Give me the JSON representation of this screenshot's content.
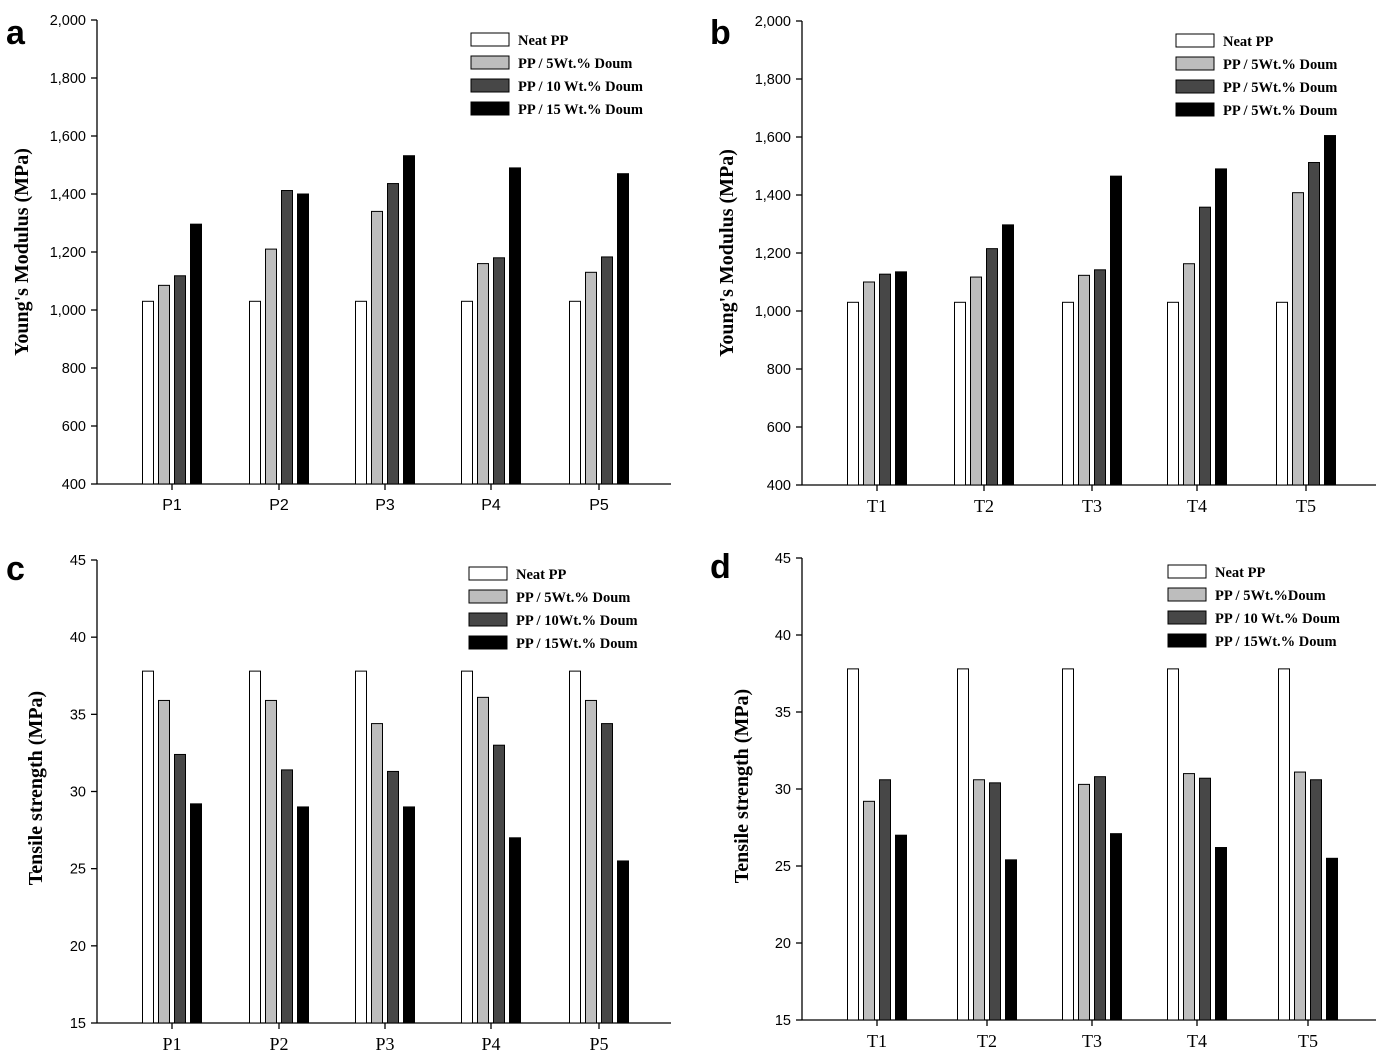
{
  "chart_data": [
    {
      "panel": "a",
      "type": "bar",
      "categories": [
        "P1",
        "P2",
        "P3",
        "P4",
        "P5"
      ],
      "ylabel": "Young's Modulus (MPa)",
      "ylim": [
        400,
        2000
      ],
      "yticks": [
        400,
        600,
        800,
        1000,
        1200,
        1400,
        1600,
        1800,
        2000
      ],
      "ytick_labels": [
        "400",
        "600",
        "800",
        "1,000",
        "1,200",
        "1,400",
        "1,600",
        "1,800",
        "2,000"
      ],
      "legend_position": "top-right",
      "series": [
        {
          "name": "Neat PP",
          "color": "#ffffff",
          "values": [
            1030,
            1030,
            1030,
            1030,
            1030
          ]
        },
        {
          "name": "PP / 5Wt.% Doum",
          "color": "#bdbdbd",
          "values": [
            1085,
            1210,
            1340,
            1160,
            1130
          ]
        },
        {
          "name": "PP / 10 Wt.% Doum",
          "color": "#474747",
          "values": [
            1118,
            1412,
            1436,
            1180,
            1183
          ]
        },
        {
          "name": "PP / 15 Wt.% Doum",
          "color": "#000000",
          "values": [
            1296,
            1400,
            1532,
            1490,
            1470
          ]
        }
      ]
    },
    {
      "panel": "b",
      "type": "bar",
      "categories": [
        "T1",
        "T2",
        "T3",
        "T4",
        "T5"
      ],
      "ylabel": "Young's Modulus (MPa)",
      "ylim": [
        400,
        2000
      ],
      "yticks": [
        400,
        600,
        800,
        1000,
        1200,
        1400,
        1600,
        1800,
        2000
      ],
      "ytick_labels": [
        "400",
        "600",
        "800",
        "1,000",
        "1,200",
        "1,400",
        "1,600",
        "1,800",
        "2,000"
      ],
      "legend_position": "top-right",
      "series": [
        {
          "name": "Neat PP",
          "color": "#ffffff",
          "values": [
            1030,
            1030,
            1030,
            1030,
            1030
          ]
        },
        {
          "name": "PP / 5Wt.% Doum",
          "color": "#bdbdbd",
          "values": [
            1100,
            1117,
            1123,
            1163,
            1408
          ]
        },
        {
          "name": "PP / 5Wt.% Doum",
          "color": "#474747",
          "values": [
            1127,
            1215,
            1142,
            1358,
            1512
          ]
        },
        {
          "name": "PP / 5Wt.% Doum",
          "color": "#000000",
          "values": [
            1135,
            1297,
            1465,
            1490,
            1605
          ]
        }
      ]
    },
    {
      "panel": "c",
      "type": "bar",
      "categories": [
        "P1",
        "P2",
        "P3",
        "P4",
        "P5"
      ],
      "ylabel": "Tensile strength (MPa)",
      "ylim": [
        15,
        45
      ],
      "yticks": [
        15,
        20,
        25,
        30,
        35,
        40,
        45
      ],
      "ytick_labels": [
        "15",
        "20",
        "25",
        "30",
        "35",
        "40",
        "45"
      ],
      "legend_position": "top-right",
      "series": [
        {
          "name": "Neat PP",
          "color": "#ffffff",
          "values": [
            37.8,
            37.8,
            37.8,
            37.8,
            37.8
          ]
        },
        {
          "name": "PP / 5Wt.% Doum",
          "color": "#bdbdbd",
          "values": [
            35.9,
            35.9,
            34.4,
            36.1,
            35.9
          ]
        },
        {
          "name": "PP / 10Wt.% Doum",
          "color": "#474747",
          "values": [
            32.4,
            31.4,
            31.3,
            33.0,
            34.4
          ]
        },
        {
          "name": "PP / 15Wt.% Doum",
          "color": "#000000",
          "values": [
            29.2,
            29.0,
            29.0,
            27.0,
            25.5
          ]
        }
      ]
    },
    {
      "panel": "d",
      "type": "bar",
      "categories": [
        "T1",
        "T2",
        "T3",
        "T4",
        "T5"
      ],
      "ylabel": "Tensile strength (MPa)",
      "ylim": [
        15,
        45
      ],
      "yticks": [
        15,
        20,
        25,
        30,
        35,
        40,
        45
      ],
      "ytick_labels": [
        "15",
        "20",
        "25",
        "30",
        "35",
        "40",
        "45"
      ],
      "legend_position": "top-right",
      "series": [
        {
          "name": "Neat PP",
          "color": "#ffffff",
          "values": [
            37.8,
            37.8,
            37.8,
            37.8,
            37.8
          ]
        },
        {
          "name": "PP / 5Wt.%Doum",
          "color": "#bdbdbd",
          "values": [
            29.2,
            30.6,
            30.3,
            31.0,
            31.1
          ]
        },
        {
          "name": "PP / 10 Wt.% Doum",
          "color": "#474747",
          "values": [
            30.6,
            30.4,
            30.8,
            30.7,
            30.6
          ]
        },
        {
          "name": "PP / 15Wt.% Doum",
          "color": "#000000",
          "values": [
            27.0,
            25.4,
            27.1,
            26.2,
            25.5
          ]
        }
      ]
    }
  ]
}
